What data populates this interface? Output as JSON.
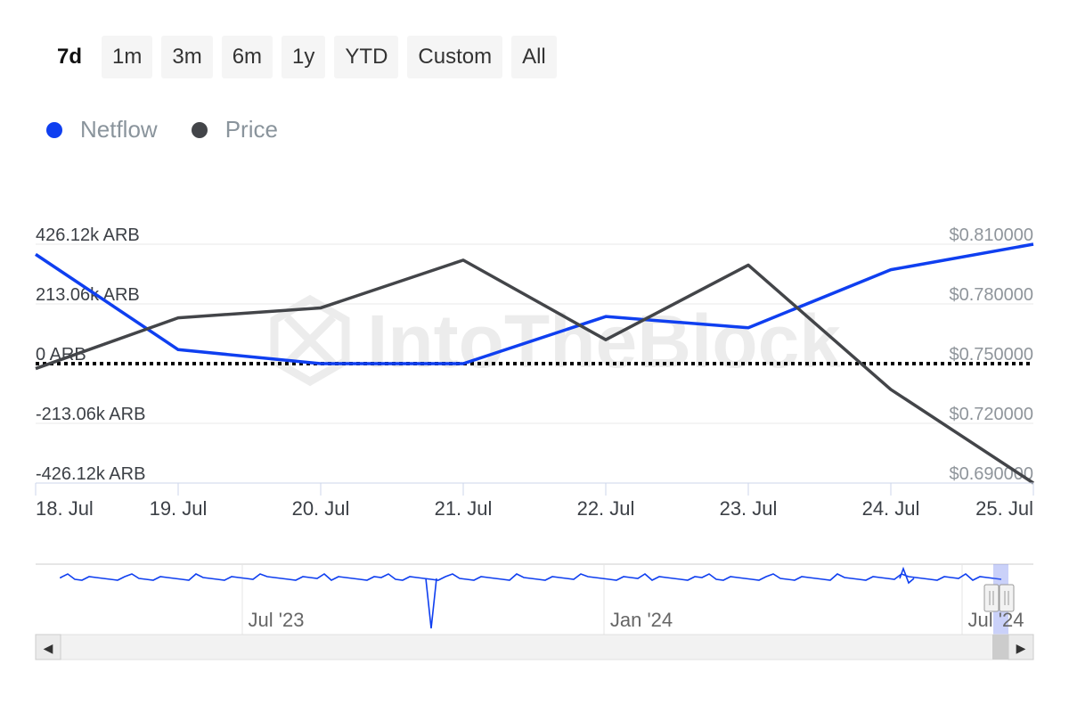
{
  "range_buttons": [
    "7d",
    "1m",
    "3m",
    "6m",
    "1y",
    "YTD",
    "Custom",
    "All"
  ],
  "range_active": "7d",
  "legend": [
    {
      "name": "Netflow",
      "color": "#0f3ff0"
    },
    {
      "name": "Price",
      "color": "#434549"
    }
  ],
  "chart_data": {
    "type": "line",
    "title": "",
    "x": [
      "18. Jul",
      "19. Jul",
      "20. Jul",
      "21. Jul",
      "22. Jul",
      "23. Jul",
      "24. Jul",
      "25. Jul"
    ],
    "series": [
      {
        "name": "Netflow",
        "axis": "left",
        "unit": "ARB",
        "color": "#0f3ff0",
        "values": [
          390000,
          50000,
          0,
          0,
          168000,
          128000,
          335000,
          426120
        ]
      },
      {
        "name": "Price",
        "axis": "right",
        "unit": "USD",
        "color": "#434549",
        "values": [
          0.7475,
          0.773,
          0.778,
          0.802,
          0.762,
          0.7995,
          0.737,
          0.69
        ]
      }
    ],
    "y_left": {
      "ticks": [
        426120,
        213060,
        0,
        -213060,
        -426120
      ],
      "tick_labels": [
        "426.12k ARB",
        "213.06k ARB",
        "0 ARB",
        "-213.06k ARB",
        "-426.12k ARB"
      ],
      "range": [
        -426120,
        426120
      ]
    },
    "y_right": {
      "ticks": [
        0.81,
        0.78,
        0.75,
        0.72,
        0.69
      ],
      "tick_labels": [
        "$0.810000",
        "$0.780000",
        "$0.750000",
        "$0.720000",
        "$0.690000"
      ],
      "range": [
        0.69,
        0.81
      ]
    },
    "zero_line": "dotted",
    "grid": true,
    "legend_position": "top-left",
    "watermark": "IntoTheBlock"
  },
  "navigator": {
    "labels": [
      "Jul '23",
      "Jan '24",
      "Jul '24"
    ],
    "series_color": "#0f3ff0"
  },
  "scrollbar": {
    "left_arrow": "◀",
    "right_arrow": "▶"
  }
}
